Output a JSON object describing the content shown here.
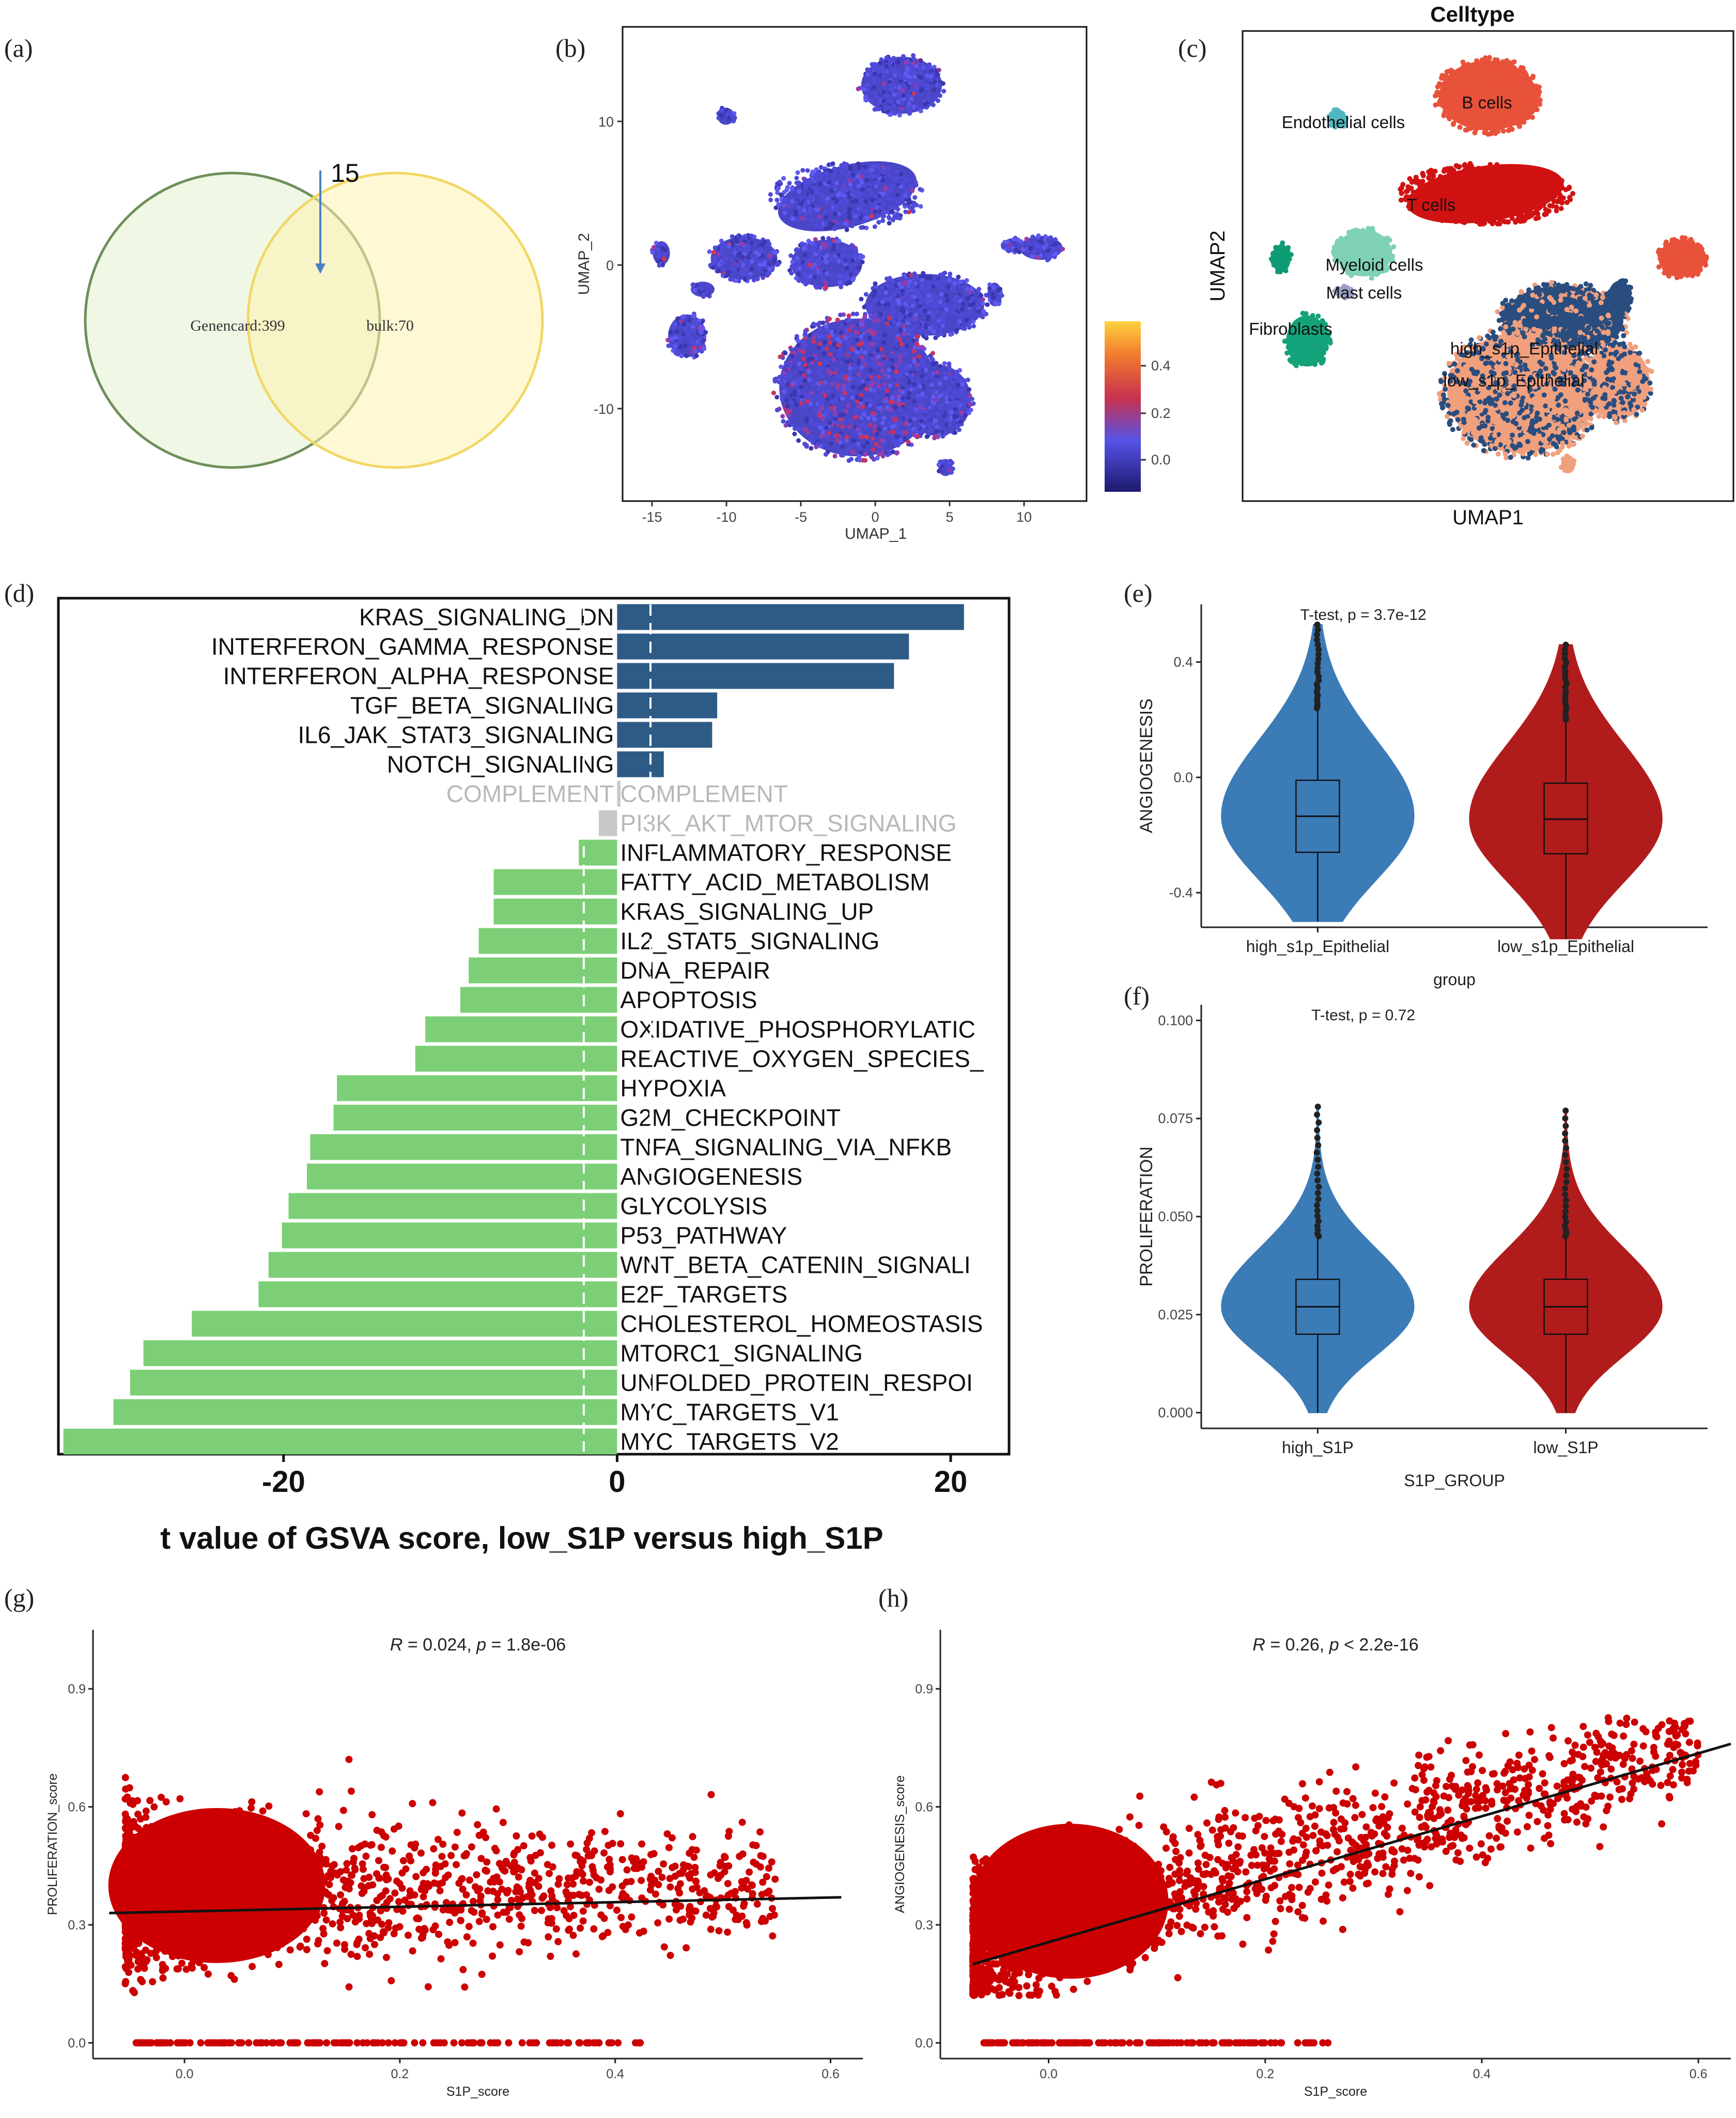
{
  "panel_labels": {
    "a": "(a)",
    "b": "(b)",
    "c": "(c)",
    "d": "(d)",
    "e": "(e)",
    "f": "(f)",
    "g": "(g)",
    "h": "(h)"
  },
  "colors": {
    "up": "#2e5b86",
    "down": "#7ccf76",
    "ns": "#c8c8c8",
    "blue": "#3b7bb6",
    "red": "#b01c1c",
    "scatter": "#cc0000"
  },
  "chart_data": [
    {
      "id": "a",
      "type": "venn",
      "sets": [
        {
          "label": "Genencard:399",
          "size": 399,
          "color": "#eef6e2"
        },
        {
          "label": "bulk:70",
          "size": 70,
          "color": "#fdf7cc"
        }
      ],
      "intersection": 15,
      "annotation": "15"
    },
    {
      "id": "b",
      "type": "scatter",
      "title": "",
      "xlabel": "UMAP_1",
      "ylabel": "UMAP_2",
      "xticks": [
        "-15",
        "-10",
        "-5",
        "0",
        "5",
        "10"
      ],
      "yticks": [
        "10",
        "0",
        "-10"
      ],
      "colorbar": {
        "ticks": [
          "0.4",
          "0.2",
          "0.0"
        ],
        "range": [
          -0.15,
          0.55
        ]
      }
    },
    {
      "id": "c",
      "type": "scatter",
      "title": "Celltype",
      "xlabel": "UMAP1",
      "ylabel": "UMAP2",
      "labels": [
        "B cells",
        "Endothelial cells",
        "T cells",
        "Myeloid cells",
        "Mast cells",
        "Fibroblasts",
        "high_s1p_Epithelial",
        "low_s1p_Epithelial"
      ]
    },
    {
      "id": "d",
      "type": "bar",
      "orientation": "horizontal",
      "xlabel": "t value of GSVA score, low_S1P versus high_S1P",
      "xlim": [
        -33.5,
        23.5
      ],
      "xticks": [
        "-20",
        "0",
        "20"
      ],
      "threshold": 2,
      "categories": [
        "KRAS_SIGNALING_DN",
        "INTERFERON_GAMMA_RESPONSE",
        "INTERFERON_ALPHA_RESPONSE",
        "TGF_BETA_SIGNALING",
        "IL6_JAK_STAT3_SIGNALING",
        "NOTCH_SIGNALING",
        "COMPLEMENT",
        "PI3K_AKT_MTOR_SIGNALING",
        "INFLAMMATORY_RESPONSE",
        "FATTY_ACID_METABOLISM",
        "KRAS_SIGNALING_UP",
        "IL2_STAT5_SIGNALING",
        "DNA_REPAIR",
        "APOPTOSIS",
        "OXIDATIVE_PHOSPHORYLATION",
        "REACTIVE_OXYGEN_SPECIES_PATHWAY",
        "HYPOXIA",
        "G2M_CHECKPOINT",
        "TNFA_SIGNALING_VIA_NFKB",
        "ANGIOGENESIS",
        "GLYCOLYSIS",
        "P53_PATHWAY",
        "WNT_BETA_CATENIN_SIGNALING",
        "E2F_TARGETS",
        "CHOLESTEROL_HOMEOSTASIS",
        "MTORC1_SIGNALING",
        "UNFOLDED_PROTEIN_RESPONSE",
        "MYC_TARGETS_V1",
        "MYC_TARGETS_V2"
      ],
      "values": [
        20.8,
        17.5,
        16.6,
        6.0,
        5.7,
        2.8,
        0.2,
        -1.1,
        -2.3,
        -7.4,
        -7.4,
        -8.3,
        -8.9,
        -9.4,
        -11.5,
        -12.1,
        -16.8,
        -17.0,
        -18.4,
        -18.6,
        -19.7,
        -20.1,
        -20.9,
        -21.5,
        -25.5,
        -28.4,
        -29.2,
        -30.2,
        -33.2
      ],
      "displayed_labels": [
        "KRAS_SIGNALING_DN",
        "INTERFERON_GAMMA_RESPONSE",
        "INTERFERON_ALPHA_RESPONSE",
        "TGF_BETA_SIGNALING",
        "IL6_JAK_STAT3_SIGNALING",
        "NOTCH_SIGNALING",
        "COMPLEMENT",
        "PI3K_AKT_MTOR_SIGNALING",
        "INFLAMMATORY_RESPONSE",
        "FATTY_ACID_METABOLISM",
        "KRAS_SIGNALING_UP",
        "IL2_STAT5_SIGNALING",
        "DNA_REPAIR",
        "APOPTOSIS",
        "OXIDATIVE_PHOSPHORYLATIC",
        "REACTIVE_OXYGEN_SPECIES_",
        "HYPOXIA",
        "G2M_CHECKPOINT",
        "TNFA_SIGNALING_VIA_NFKB",
        "ANGIOGENESIS",
        "GLYCOLYSIS",
        "P53_PATHWAY",
        "WNT_BETA_CATENIN_SIGNALI",
        "E2F_TARGETS",
        "CHOLESTEROL_HOMEOSTASIS",
        "MTORC1_SIGNALING",
        "UNFOLDED_PROTEIN_RESPOI",
        "MYC_TARGETS_V1",
        "MYC_TARGETS_V2"
      ],
      "left_labels": [
        "KRAS_SIGNALING_DN",
        "INTERFERON_GAMMA_RESPONSE",
        "INTERFERON_ALPHA_RESPONSE",
        "TGF_BETA_SIGNALING",
        "IL6_JAK_STAT3_SIGNALING",
        "NOTCH_SIGNALING",
        "COMPLEMENT"
      ],
      "right_extra": [
        "COMPLEMENT"
      ]
    },
    {
      "id": "e",
      "type": "violin",
      "annotation": "T-test, p = 3.7e-12",
      "xlabel": "group",
      "ylabel": "ANGIOGENESIS",
      "ylim": [
        -0.52,
        0.6
      ],
      "yticks": [
        0.4,
        0.0,
        -0.4
      ],
      "ytick_labels": [
        "0.4",
        "0.0",
        "-0.4"
      ],
      "groups": [
        {
          "name": "high_s1p_Epithelial",
          "color": "#3b7bb6",
          "median": -0.135,
          "q1": -0.26,
          "q3": -0.01,
          "whisker_low": -0.5,
          "whisker_high": 0.24,
          "max": 0.53,
          "min": -0.5
        },
        {
          "name": "low_s1p_Epithelial",
          "color": "#b01c1c",
          "median": -0.145,
          "q1": -0.265,
          "q3": -0.02,
          "whisker_low": -0.56,
          "whisker_high": 0.2,
          "max": 0.46,
          "min": -0.56
        }
      ]
    },
    {
      "id": "f",
      "type": "violin",
      "annotation": "T-test, p = 0.72",
      "xlabel": "S1P_GROUP",
      "ylabel": "PROLIFERATION",
      "ylim": [
        -0.004,
        0.104
      ],
      "yticks": [
        0.1,
        0.075,
        0.05,
        0.025,
        0.0
      ],
      "ytick_labels": [
        "0.100",
        "0.075",
        "0.050",
        "0.025",
        "0.000"
      ],
      "groups": [
        {
          "name": "high_S1P",
          "color": "#3b7bb6",
          "median": 0.027,
          "q1": 0.02,
          "q3": 0.034,
          "whisker_low": 0.0,
          "whisker_high": 0.045,
          "max": 0.078,
          "min": 0.0
        },
        {
          "name": "low_S1P",
          "color": "#b01c1c",
          "median": 0.027,
          "q1": 0.02,
          "q3": 0.034,
          "whisker_low": 0.0,
          "whisker_high": 0.045,
          "max": 0.077,
          "min": 0.0
        }
      ]
    },
    {
      "id": "g",
      "type": "scatter",
      "annotation_r": "R",
      "annotation_text": " = 0.024, ",
      "annotation_p": "p",
      "annotation_val": " = 1.8e-06",
      "xlabel": "S1P_score",
      "ylabel": "PROLIFERATION_score",
      "xlim": [
        -0.085,
        0.63
      ],
      "ylim": [
        -0.04,
        1.05
      ],
      "xticks": [
        0.0,
        0.2,
        0.4,
        0.6
      ],
      "xtick_labels": [
        "0.0",
        "0.2",
        "0.4",
        "0.6"
      ],
      "yticks": [
        0.0,
        0.3,
        0.6,
        0.9
      ],
      "ytick_labels": [
        "0.0",
        "0.3",
        "0.6",
        "0.9"
      ],
      "fit": {
        "x0": -0.07,
        "y0": 0.33,
        "x1": 0.61,
        "y1": 0.37
      }
    },
    {
      "id": "h",
      "type": "scatter",
      "annotation_r": "R",
      "annotation_text": " = 0.26, ",
      "annotation_p": "p",
      "annotation_val": " < 2.2e-16",
      "xlabel": "S1P_score",
      "ylabel": "ANGIOGENESIS_score",
      "xlim": [
        -0.1,
        0.63
      ],
      "ylim": [
        -0.04,
        1.05
      ],
      "xticks": [
        0.0,
        0.2,
        0.4,
        0.6
      ],
      "xtick_labels": [
        "0.0",
        "0.2",
        "0.4",
        "0.6"
      ],
      "yticks": [
        0.0,
        0.3,
        0.6,
        0.9
      ],
      "ytick_labels": [
        "0.0",
        "0.3",
        "0.6",
        "0.9"
      ],
      "fit": {
        "x0": -0.07,
        "y0": 0.2,
        "x1": 0.63,
        "y1": 0.76
      }
    }
  ]
}
